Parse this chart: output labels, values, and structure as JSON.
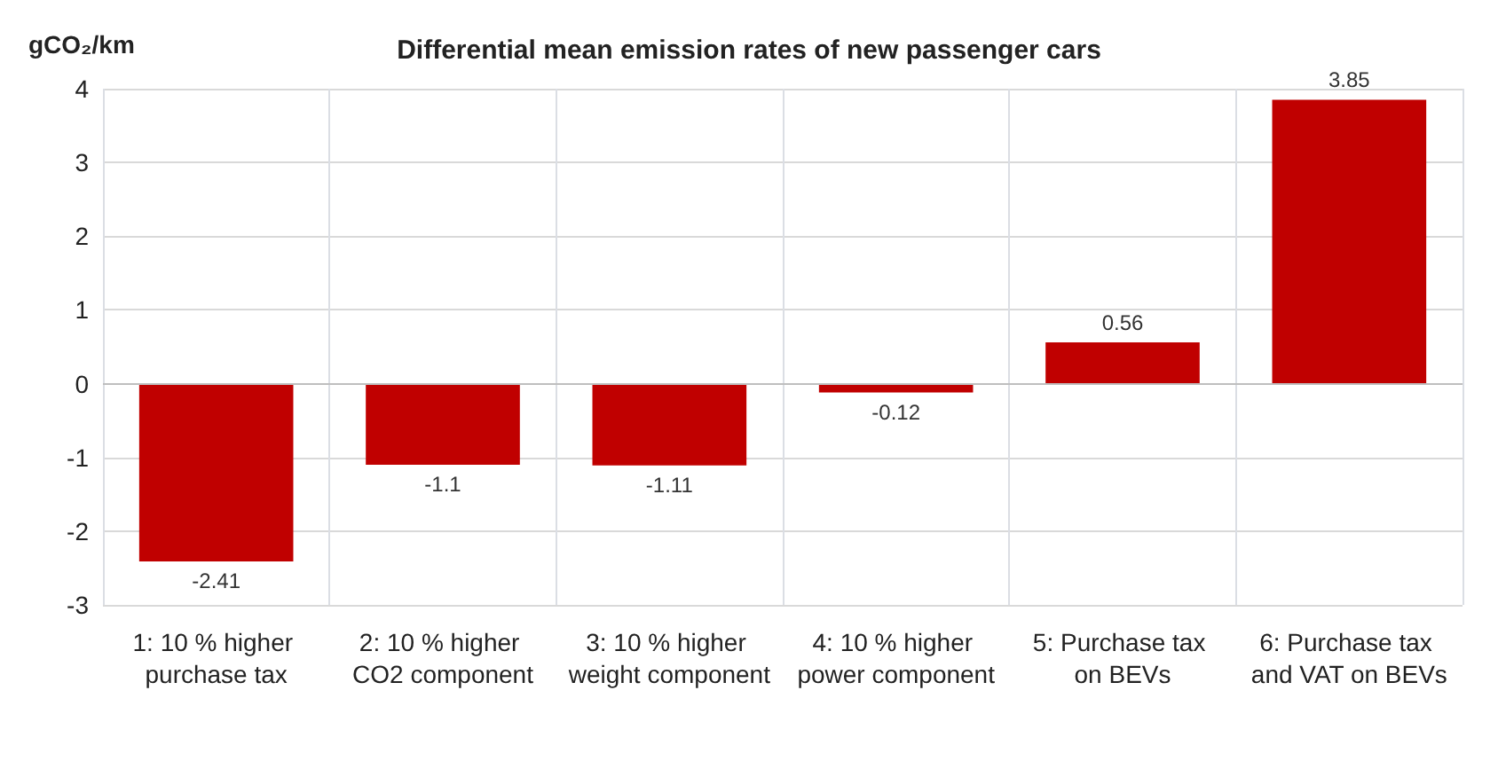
{
  "chart_data": {
    "type": "bar",
    "title": "Differential mean emission rates of new passenger cars",
    "ylabel": "gCO₂/km",
    "categories": [
      "1: 10 % higher purchase tax",
      "2: 10 % higher CO2 component",
      "3: 10 % higher weight component",
      "4: 10 % higher power component",
      "5: Purchase tax on BEVs",
      "6: Purchase tax and VAT on BEVs"
    ],
    "values": [
      -2.41,
      -1.1,
      -1.11,
      -0.12,
      0.56,
      3.85
    ],
    "color": "#c00000",
    "ylim": [
      -3,
      4
    ],
    "yticks": [
      -3,
      -2,
      -1,
      0,
      1,
      2,
      3,
      4
    ],
    "grid": true,
    "data_labels": true
  }
}
